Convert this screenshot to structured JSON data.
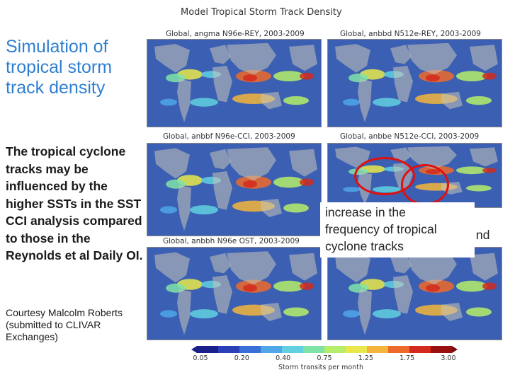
{
  "slide": {
    "title": "Simulation of tropical storm track density",
    "body": "The tropical cyclone tracks may be influenced by the higher SSTs in the SST CCI analysis compared to those in the Reynolds et al Daily OI.",
    "credit": "Courtesy Malcolm Roberts (submitted to CLIVAR Exchanges)"
  },
  "figure": {
    "title": "Model Tropical Storm Track Density",
    "panels": [
      {
        "label": "Global, angma N96e-REY, 2003-2009"
      },
      {
        "label": "Global, anbbd N512e-REY, 2003-2009"
      },
      {
        "label": "Global, anbbf N96e-CCI, 2003-2009"
      },
      {
        "label": "Global, anbbe N512e-CCI, 2003-2009"
      },
      {
        "label": "Global, anbbh N96e OST, 2003-2009"
      }
    ],
    "callout": {
      "text": "increase in the frequency of tropical cyclone tracks",
      "cut_text": "nd"
    },
    "colorbar": {
      "ticks": [
        "0.05",
        "0.20",
        "0.40",
        "0.75",
        "1.25",
        "1.75",
        "3.00"
      ],
      "label": "Storm transits per month",
      "colors": [
        "#1b1f8a",
        "#2a3fb8",
        "#3b6fd8",
        "#4fa6e8",
        "#62d0e0",
        "#7fe3a8",
        "#b6ee6a",
        "#e9e84a",
        "#f5b53a",
        "#ee6a2a",
        "#d42a1c",
        "#9a0f0f"
      ]
    }
  }
}
